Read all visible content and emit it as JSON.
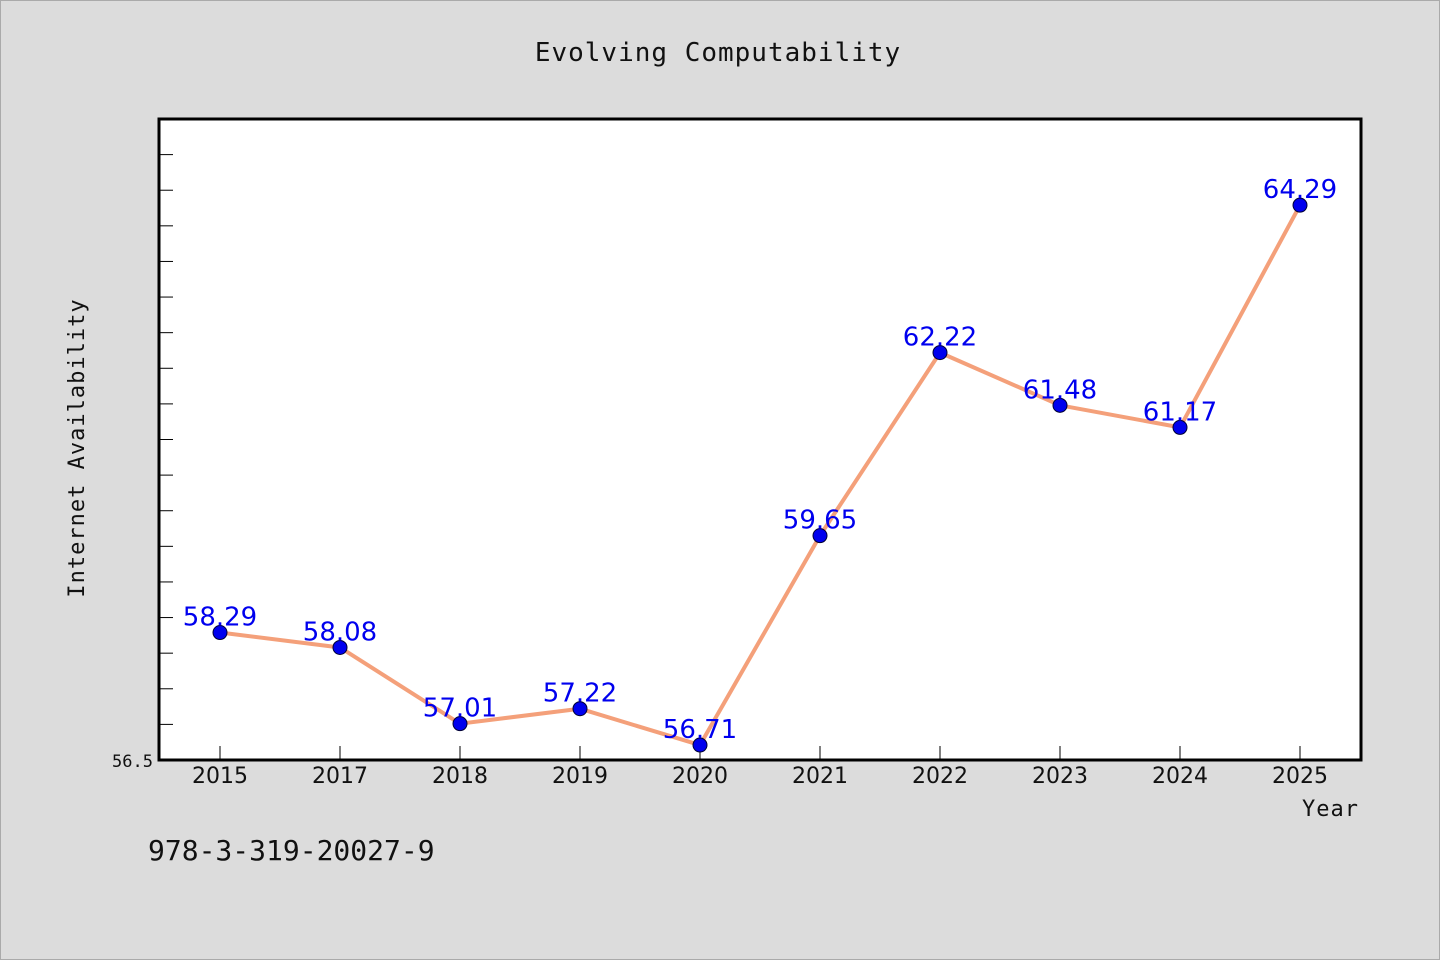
{
  "footer": {
    "isbn": "978-3-319-20027-9"
  },
  "colors": {
    "background": "#dcdcdc",
    "plot_background": "#ffffff",
    "line": "#f4a07a",
    "marker": "#0000ee",
    "label": "#0000ee"
  },
  "chart_data": {
    "type": "line",
    "title": "Evolving Computability",
    "xlabel": "Year",
    "ylabel": "Internet Availability",
    "categories": [
      "2015",
      "2017",
      "2018",
      "2019",
      "2020",
      "2021",
      "2022",
      "2023",
      "2024",
      "2025"
    ],
    "series": [
      {
        "values": [
          58.29,
          58.08,
          57.01,
          57.22,
          56.71,
          59.65,
          62.22,
          61.48,
          61.17,
          64.29
        ]
      }
    ],
    "data_labels": [
      "58.29",
      "58.08",
      "57.01",
      "57.22",
      "56.71",
      "59.65",
      "62.22",
      "61.48",
      "61.17",
      "64.29"
    ],
    "ylim": [
      56.5,
      65.5
    ],
    "ytick_labels": [
      "56.5"
    ],
    "grid": false,
    "legend": "none"
  }
}
